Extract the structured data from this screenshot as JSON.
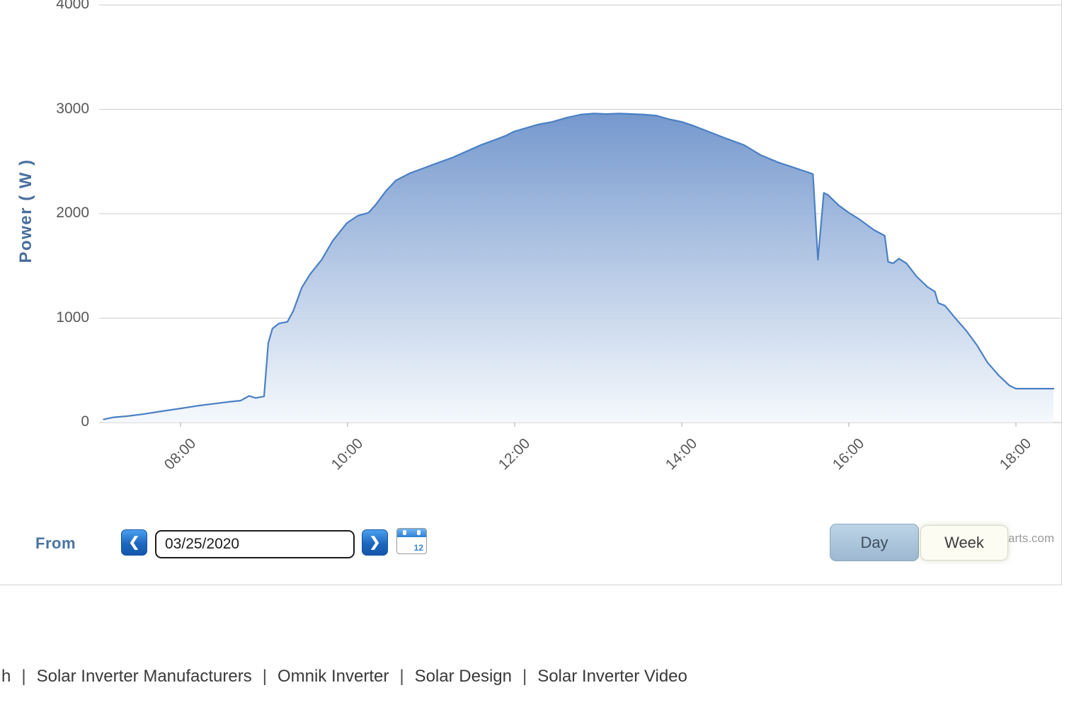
{
  "chart": {
    "watermark": "arts.com"
  },
  "chart_data": {
    "type": "area",
    "title": "",
    "xlabel": "",
    "ylabel": "Power ( W )",
    "x_tick_labels": [
      "08:00",
      "10:00",
      "12:00",
      "14:00",
      "16:00",
      "18:00"
    ],
    "x_tick_hours": [
      8,
      10,
      12,
      14,
      16,
      18
    ],
    "y_ticks": [
      0,
      1000,
      2000,
      3000,
      4000
    ],
    "ylim": [
      0,
      4000
    ],
    "xlim_hours": [
      7.0,
      18.55
    ],
    "grid": true,
    "legend": "none",
    "line_color": "#4a80c4",
    "fill_top_color": "#6e93cb",
    "fill_bottom_color": "#f4f8fc",
    "series": [
      {
        "name": "Power (W)",
        "x_hours": [
          7.08,
          7.2,
          7.35,
          7.55,
          7.75,
          8.0,
          8.2,
          8.45,
          8.6,
          8.72,
          8.82,
          8.9,
          9.0,
          9.05,
          9.1,
          9.18,
          9.28,
          9.35,
          9.45,
          9.55,
          9.69,
          9.82,
          9.99,
          10.12,
          10.25,
          10.33,
          10.46,
          10.58,
          10.75,
          10.92,
          11.09,
          11.26,
          11.43,
          11.6,
          11.77,
          11.9,
          12.0,
          12.11,
          12.28,
          12.45,
          12.62,
          12.79,
          12.95,
          13.1,
          13.25,
          13.4,
          13.55,
          13.7,
          13.85,
          14.0,
          14.15,
          14.31,
          14.5,
          14.74,
          14.95,
          15.16,
          15.35,
          15.5,
          15.57,
          15.63,
          15.7,
          15.75,
          15.88,
          16.0,
          16.13,
          16.3,
          16.43,
          16.47,
          16.53,
          16.6,
          16.69,
          16.81,
          16.94,
          17.03,
          17.07,
          17.15,
          17.28,
          17.41,
          17.53,
          17.66,
          17.79,
          17.92,
          18.0,
          18.15,
          18.3,
          18.45
        ],
        "values": [
          30,
          50,
          60,
          80,
          105,
          135,
          160,
          185,
          200,
          210,
          255,
          235,
          250,
          760,
          900,
          950,
          965,
          1070,
          1290,
          1420,
          1560,
          1740,
          1910,
          1980,
          2010,
          2080,
          2220,
          2320,
          2390,
          2440,
          2490,
          2540,
          2600,
          2660,
          2710,
          2750,
          2790,
          2815,
          2855,
          2880,
          2920,
          2950,
          2960,
          2955,
          2960,
          2955,
          2950,
          2940,
          2905,
          2880,
          2840,
          2790,
          2730,
          2660,
          2560,
          2490,
          2440,
          2400,
          2380,
          1560,
          2200,
          2180,
          2080,
          2010,
          1945,
          1845,
          1790,
          1540,
          1525,
          1570,
          1525,
          1400,
          1300,
          1255,
          1145,
          1120,
          995,
          875,
          745,
          575,
          455,
          355,
          325,
          325,
          325,
          325
        ]
      }
    ]
  },
  "controls": {
    "from_label": "From",
    "prev_icon": "❮",
    "next_icon": "❯",
    "date_value": "03/25/2020",
    "calendar_day": "12",
    "day_label": "Day",
    "week_label": "Week"
  },
  "colors": {
    "nav_button_blue": "#1c67be",
    "day_button_fill": "#9cb8d0",
    "axis_label_gray": "#585858",
    "y_title_blue": "#4a6f9e",
    "grid_gray": "#cdcdcd"
  },
  "footer": {
    "separator": "|",
    "items": [
      "h",
      "Solar Inverter Manufacturers",
      "Omnik Inverter",
      "Solar Design",
      "Solar Inverter Video"
    ]
  }
}
